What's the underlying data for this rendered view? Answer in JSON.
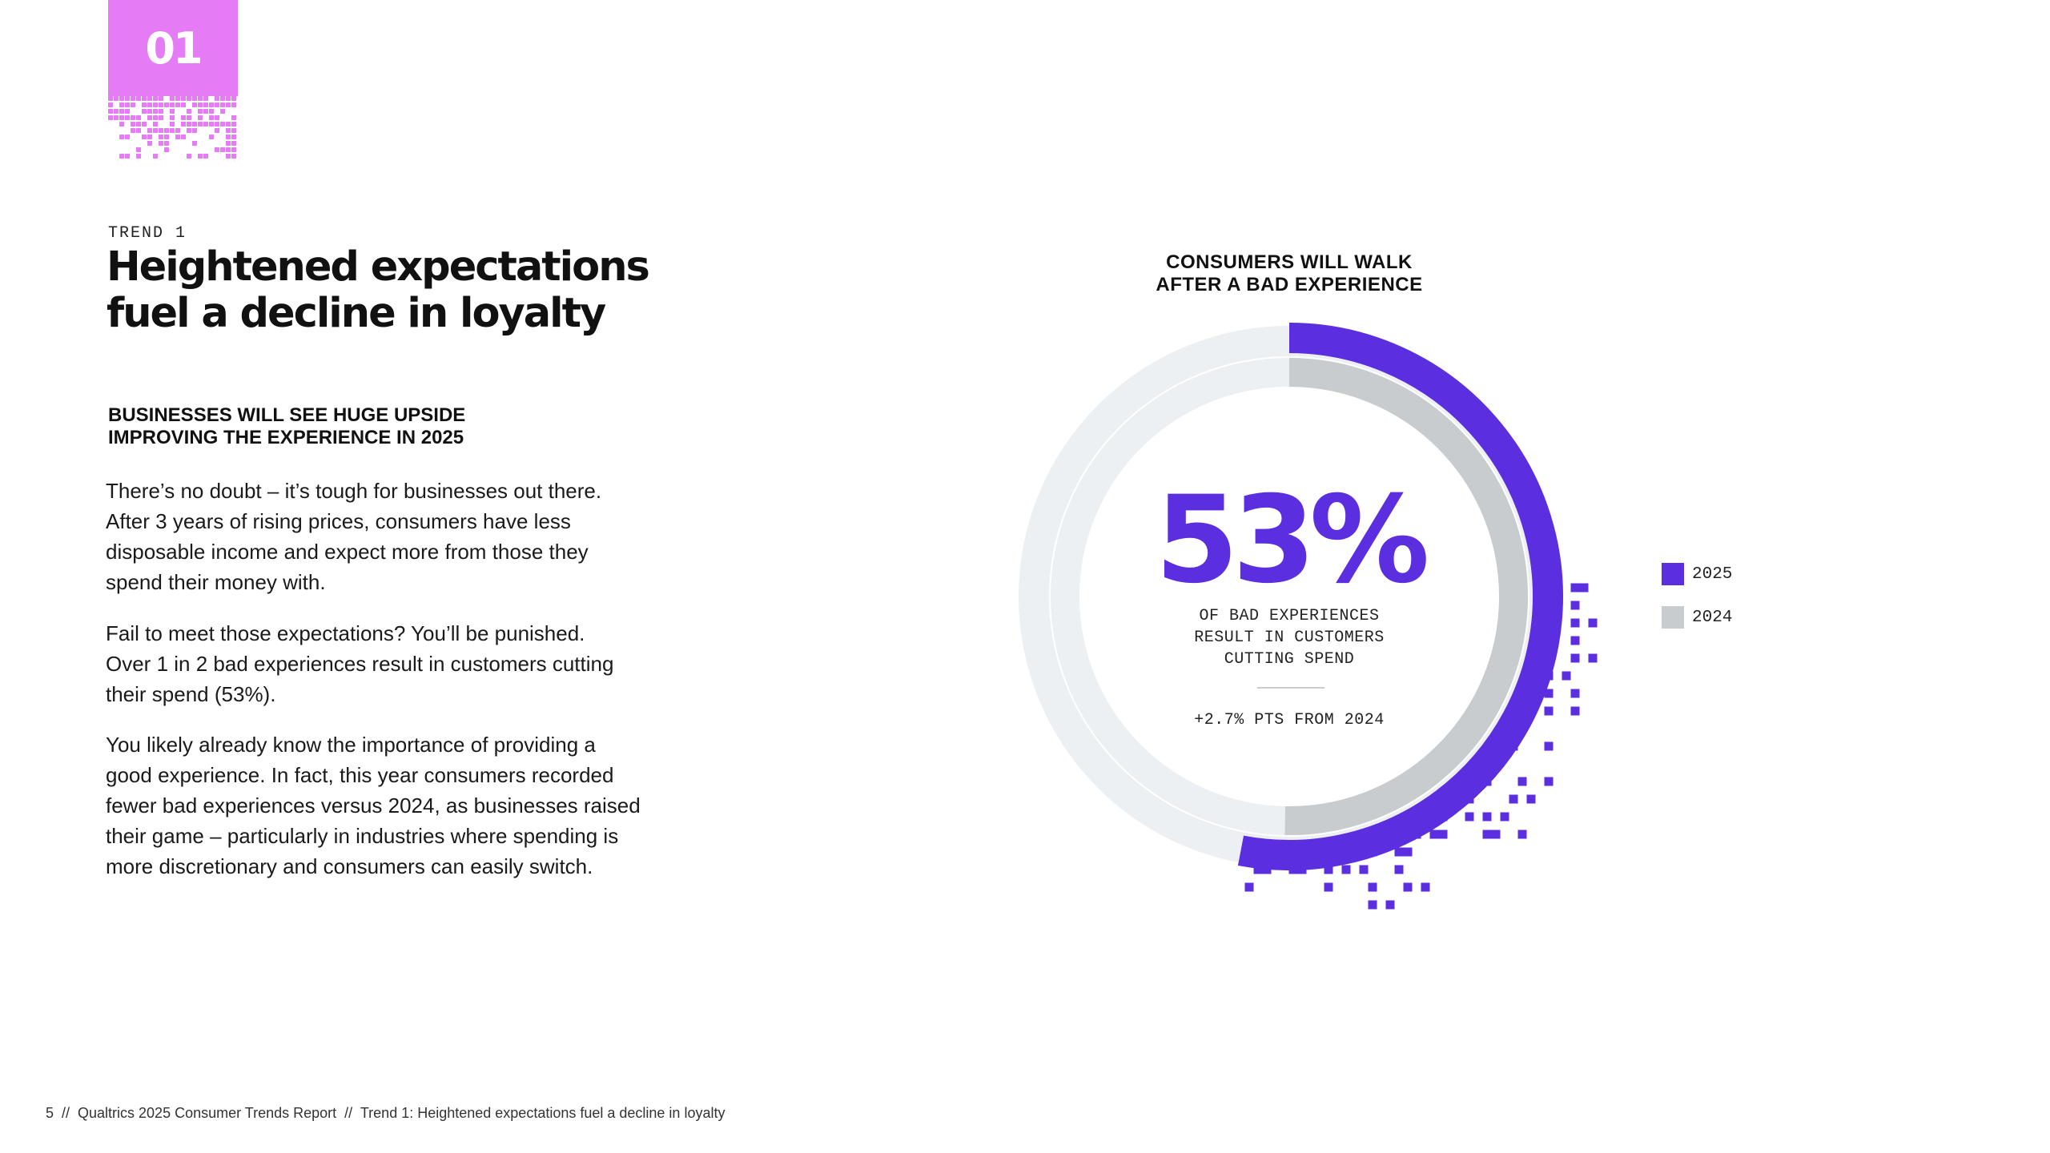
{
  "badge": {
    "number": "01"
  },
  "header": {
    "kicker": "TREND 1",
    "title_line1": "Heightened expectations",
    "title_line2": "fuel a decline in loyalty"
  },
  "section": {
    "subhead_line1": "BUSINESSES WILL SEE HUGE UPSIDE",
    "subhead_line2": "IMPROVING THE EXPERIENCE IN 2025",
    "paragraph1": [
      "There’s no doubt – it’s tough for businesses out there.",
      "After 3 years of rising prices, consumers have less",
      "disposable income and expect more from those they",
      "spend their money with."
    ],
    "paragraph2": [
      "Fail to meet those expectations? You’ll be punished.",
      "Over 1 in 2 bad experiences result in customers cutting",
      "their spend (53%)."
    ],
    "paragraph3": [
      "You likely already know the importance of providing a",
      "good experience. In fact, this year consumers recorded",
      "fewer bad experiences versus 2024, as businesses raised",
      "their game – particularly in industries where spending is",
      "more discretionary and consumers can easily switch."
    ]
  },
  "footer": {
    "text": "5  //  Qualtrics 2025 Consumer Trends Report  //  Trend 1: Heightened expectations fuel a decline in loyalty"
  },
  "colors": {
    "brand_purple": "#5b2ee0",
    "badge_pink": "#e67cf5",
    "gray_2024": "#c9ccce",
    "track": "#ecf0f2"
  },
  "chart_data": {
    "type": "pie",
    "title_line1": "CONSUMERS WILL WALK",
    "title_line2": "AFTER A BAD EXPERIENCE",
    "series": [
      {
        "name": "2025",
        "value": 53,
        "unit": "%",
        "color": "#5b2ee0"
      },
      {
        "name": "2024",
        "value": 50.3,
        "unit": "%",
        "color": "#c9ccce"
      }
    ],
    "center_value": "53%",
    "center_caption": [
      "OF BAD EXPERIENCES",
      "RESULT IN CUSTOMERS",
      "CUTTING SPEND"
    ],
    "change_label": "+2.7% PTS FROM 2024",
    "legend_position": "right"
  }
}
